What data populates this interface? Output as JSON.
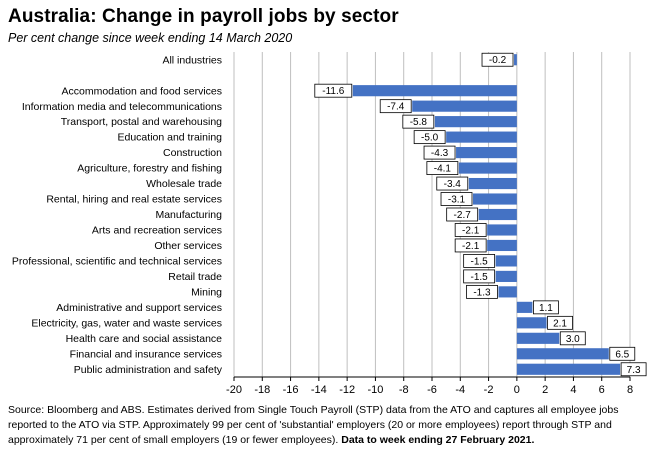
{
  "title": "Australia:  Change in payroll jobs by sector",
  "subtitle": "Per cent change since week ending 14 March 2020",
  "footer": {
    "source": "Source: Bloomberg and ABS.  Estimates derived from Single Touch Payroll (STP) data from the ATO and captures all employee jobs reported to the ATO via STP.  Approximately 99 per cent of 'substantial' employers (20 or more employees) report through STP and approximately 71 per cent of small employers (19 or fewer employees).",
    "note": "Data to week ending  27 February 2021."
  },
  "chart_data": {
    "type": "bar",
    "orientation": "horizontal",
    "categories": [
      "All industries",
      "",
      "Accommodation and food services",
      "Information media and telecommunications",
      "Transport, postal and warehousing",
      "Education and training",
      "Construction",
      "Agriculture, forestry and fishing",
      "Wholesale trade",
      "Rental, hiring and real estate services",
      "Manufacturing",
      "Arts and recreation services",
      "Other services",
      "Professional, scientific and technical services",
      "Retail trade",
      "Mining",
      "Administrative and support services",
      "Electricity, gas, water and waste services",
      "Health care and social assistance",
      "Financial and insurance services",
      "Public administration and safety"
    ],
    "values": [
      -0.2,
      null,
      -11.6,
      -7.4,
      -5.8,
      -5.0,
      -4.3,
      -4.1,
      -3.4,
      -3.1,
      -2.7,
      -2.1,
      -2.1,
      -1.5,
      -1.5,
      -1.3,
      1.1,
      2.1,
      3.0,
      6.5,
      7.3
    ],
    "data_labels": [
      "-0.2",
      "",
      "-11.6",
      "-7.4",
      "-5.8",
      "-5.0",
      "-4.3",
      "-4.1",
      "-3.4",
      "-3.1",
      "-2.7",
      "-2.1",
      "-2.1",
      "-1.5",
      "-1.5",
      "-1.3",
      "1.1",
      "2.1",
      "3.0",
      "6.5",
      "7.3"
    ],
    "xlim": [
      -20,
      8
    ],
    "xticks": [
      -20,
      -18,
      -16,
      -14,
      -12,
      -10,
      -8,
      -6,
      -4,
      -2,
      0,
      2,
      4,
      6,
      8
    ],
    "grid": "vertical",
    "bar_color": "#4472C4",
    "xlabel": "",
    "ylabel": ""
  }
}
